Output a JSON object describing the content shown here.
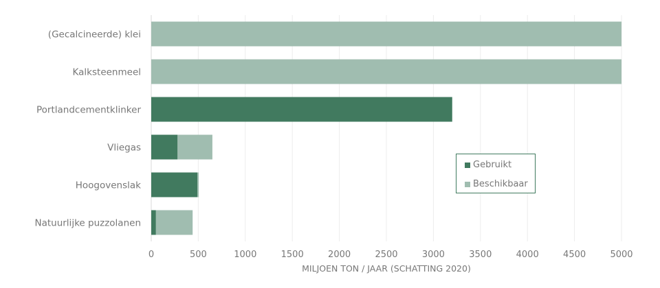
{
  "chart_data": {
    "type": "bar",
    "orientation": "horizontal",
    "stacked": true,
    "title": "",
    "xlabel": "MILJOEN TON / JAAR (SCHATTING 2020)",
    "ylabel": "",
    "xlim": [
      0,
      5000
    ],
    "xticks": [
      0,
      500,
      1000,
      1500,
      2000,
      2500,
      3000,
      3500,
      4000,
      4500,
      5000
    ],
    "grid": true,
    "legend_position": "center-right",
    "categories": [
      "(Gecalcineerde) klei",
      "Kalksteenmeel",
      "Portlandcementklinker",
      "Vliegas",
      "Hoogovenslak",
      "Natuurlijke puzzolanen"
    ],
    "series": [
      {
        "name": "Gebruikt",
        "color": "#417a5f",
        "values": [
          0,
          0,
          3200,
          280,
          490,
          50
        ]
      },
      {
        "name": "Beschikbaar",
        "color": "#a0bdb0",
        "values": [
          5000,
          5000,
          0,
          370,
          15,
          390
        ]
      }
    ]
  }
}
